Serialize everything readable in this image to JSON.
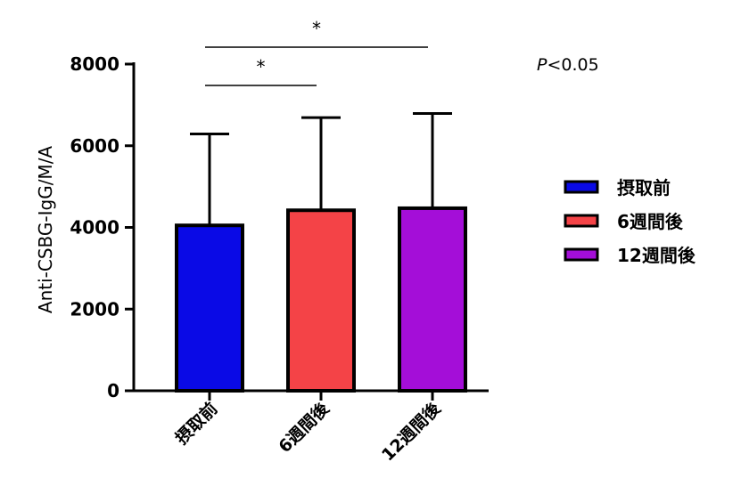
{
  "chart_data": {
    "type": "bar",
    "categories": [
      "摂取前",
      "6週間後",
      "12週間後"
    ],
    "values": [
      4050,
      4420,
      4470
    ],
    "error_upper": [
      6290,
      6690,
      6790
    ],
    "colors": [
      "#0a0ae6",
      "#f44347",
      "#a40ed8"
    ],
    "ylabel": "Anti-CSBG-IgG/M/A",
    "ylim": [
      0,
      8000
    ],
    "yticks": [
      "0",
      "2000",
      "4000",
      "6000",
      "8000"
    ],
    "ytick_values": [
      0,
      2000,
      4000,
      6000,
      8000
    ],
    "legend": {
      "placement": "right",
      "entries": [
        "摂取前",
        "6週間後",
        "12週間後"
      ]
    },
    "significance": [
      {
        "from": 0,
        "to": 1,
        "label": "*"
      },
      {
        "from": 0,
        "to": 2,
        "label": "*"
      }
    ],
    "annotation": {
      "p_prefix": "P",
      "p_rest": "<0.05"
    },
    "grid": false
  }
}
